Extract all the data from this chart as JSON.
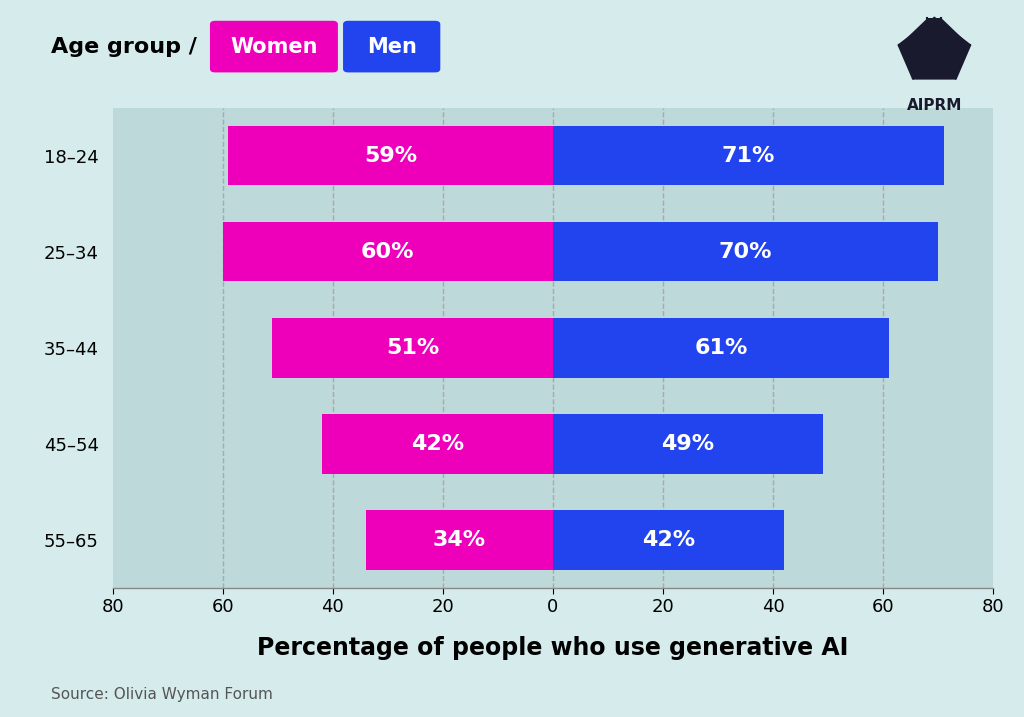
{
  "age_groups": [
    "18–24",
    "25–34",
    "35–44",
    "45–54",
    "55–65"
  ],
  "women_pct": [
    59,
    60,
    51,
    42,
    34
  ],
  "men_pct": [
    71,
    70,
    61,
    49,
    42
  ],
  "women_color": "#EE00BB",
  "men_color": "#2244EE",
  "background_color": "#D6ECEC",
  "bar_row_color": "#BDD9D9",
  "title": "Percentage of people who use generative AI",
  "source": "Source: Olivia Wyman Forum",
  "legend_label_women": "Women",
  "legend_label_men": "Men",
  "legend_prefix": "Age group /",
  "xlim": 80,
  "bar_height": 0.62,
  "title_fontsize": 17,
  "label_fontsize": 16,
  "tick_fontsize": 13,
  "ytick_fontsize": 13,
  "source_fontsize": 11,
  "legend_fontsize": 15
}
